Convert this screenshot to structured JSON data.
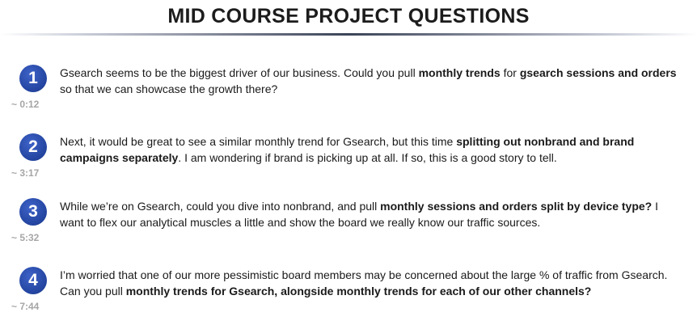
{
  "title": "MID COURSE PROJECT QUESTIONS",
  "questions": [
    {
      "number": "1",
      "time": "~ 0:12",
      "segments": [
        {
          "text": "Gsearch seems to be the biggest driver of our business. Could you pull ",
          "bold": false
        },
        {
          "text": "monthly trends",
          "bold": true
        },
        {
          "text": " for ",
          "bold": false
        },
        {
          "text": "gsearch sessions and orders",
          "bold": true
        },
        {
          "text": " so that we can showcase the growth there?",
          "bold": false
        }
      ]
    },
    {
      "number": "2",
      "time": "~ 3:17",
      "segments": [
        {
          "text": "Next, it would be great to see a similar monthly trend for Gsearch, but this time ",
          "bold": false
        },
        {
          "text": "splitting out nonbrand and brand campaigns separately",
          "bold": true
        },
        {
          "text": ". I am wondering if brand is picking up at all. If so, this is a good story to tell.",
          "bold": false
        }
      ]
    },
    {
      "number": "3",
      "time": "~ 5:32",
      "segments": [
        {
          "text": "While we’re on Gsearch, could you dive into nonbrand, and pull ",
          "bold": false
        },
        {
          "text": "monthly sessions and orders split by device type?",
          "bold": true
        },
        {
          "text": " I want to flex our analytical muscles a little and show the board we really know our traffic sources.",
          "bold": false
        }
      ]
    },
    {
      "number": "4",
      "time": "~ 7:44",
      "segments": [
        {
          "text": "I’m worried that one of our more pessimistic board members may be concerned about the large % of traffic from Gsearch. Can you pull ",
          "bold": false
        },
        {
          "text": "monthly trends for Gsearch, alongside monthly trends for each of our other channels?",
          "bold": true
        }
      ]
    }
  ]
}
